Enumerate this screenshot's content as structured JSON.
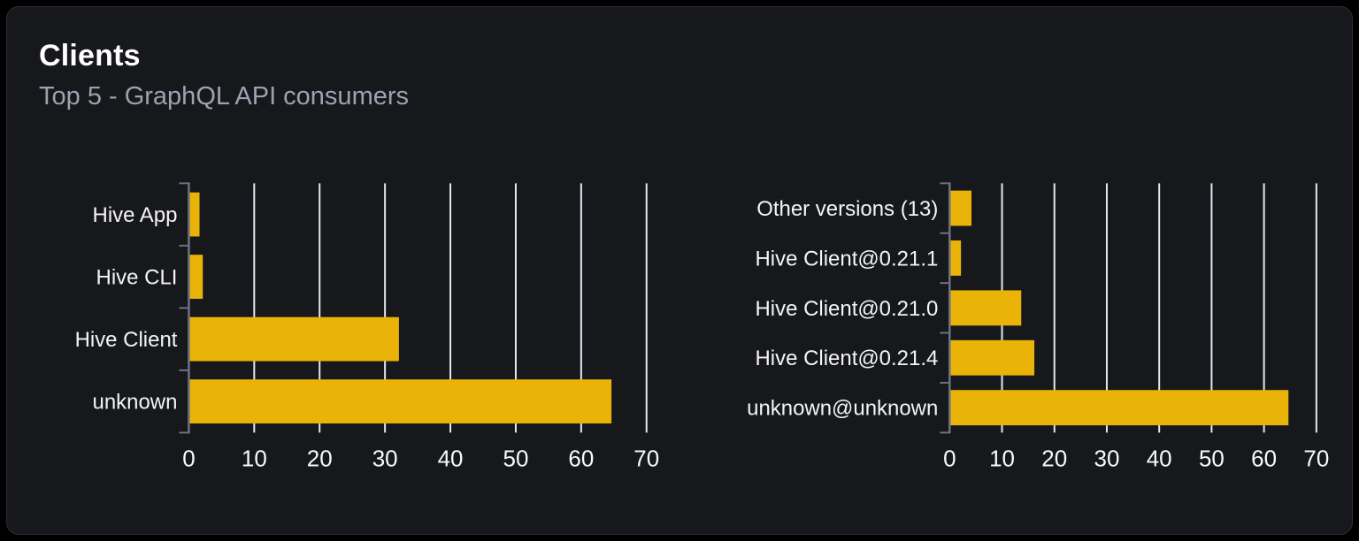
{
  "panel": {
    "title": "Clients",
    "subtitle": "Top 5 - GraphQL API consumers"
  },
  "colors": {
    "page_bg": "#000000",
    "panel_bg": "#16181c",
    "panel_border": "#2b2e33",
    "bar": "#eab308",
    "grid": "#e2e8f0",
    "axis": "#6b7280",
    "title": "#ffffff",
    "subtitle": "#9ca3af",
    "category_label": "#f4f4f5",
    "tick_label": "#f8f9fa"
  },
  "chart_data": [
    {
      "type": "bar",
      "orientation": "horizontal",
      "name": "clients-by-name",
      "title": "",
      "categories": [
        "Hive App",
        "Hive CLI",
        "Hive Client",
        "unknown"
      ],
      "values": [
        1.5,
        2,
        32,
        64.5
      ],
      "xlabel": "",
      "ylabel": "",
      "xlim": [
        0,
        70
      ],
      "xticks": [
        0,
        10,
        20,
        30,
        40,
        50,
        60,
        70
      ],
      "grid": true,
      "legend": false
    },
    {
      "type": "bar",
      "orientation": "horizontal",
      "name": "clients-by-version",
      "title": "",
      "categories": [
        "Other versions (13)",
        "Hive Client@0.21.1",
        "Hive Client@0.21.0",
        "Hive Client@0.21.4",
        "unknown@unknown"
      ],
      "values": [
        4,
        2,
        13.5,
        16,
        64.5
      ],
      "xlabel": "",
      "ylabel": "",
      "xlim": [
        0,
        70
      ],
      "xticks": [
        0,
        10,
        20,
        30,
        40,
        50,
        60,
        70
      ],
      "grid": true,
      "legend": false
    }
  ]
}
